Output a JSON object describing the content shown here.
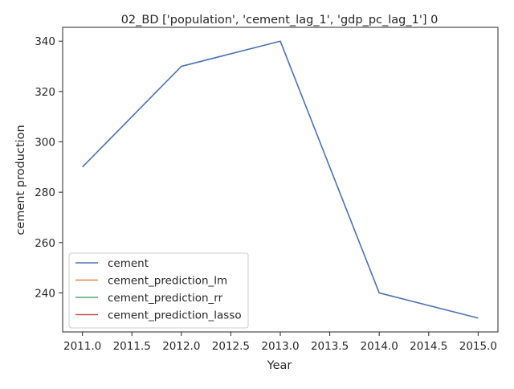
{
  "chart_data": {
    "type": "line",
    "title": "02_BD ['population', 'cement_lag_1', 'gdp_pc_lag_1'] 0",
    "xlabel": "Year",
    "ylabel": "cement production",
    "xlim": [
      2010.8,
      2015.2
    ],
    "ylim": [
      224.5,
      345.5
    ],
    "xticks": [
      2011.0,
      2011.5,
      2012.0,
      2012.5,
      2013.0,
      2013.5,
      2014.0,
      2014.5,
      2015.0
    ],
    "xtick_labels": [
      "2011.0",
      "2011.5",
      "2012.0",
      "2012.5",
      "2013.0",
      "2013.5",
      "2014.0",
      "2014.5",
      "2015.0"
    ],
    "yticks": [
      240,
      260,
      280,
      300,
      320,
      340
    ],
    "ytick_labels": [
      "240",
      "260",
      "280",
      "300",
      "320",
      "340"
    ],
    "grid": false,
    "legend_position": "lower-left",
    "series": [
      {
        "name": "cement",
        "color": "#4c72b0",
        "x": [
          2011,
          2012,
          2013,
          2014,
          2015
        ],
        "y": [
          290,
          330,
          340,
          240,
          230
        ]
      },
      {
        "name": "cement_prediction_lm",
        "color": "#dd8452",
        "x": [],
        "y": []
      },
      {
        "name": "cement_prediction_rr",
        "color": "#55a868",
        "x": [],
        "y": []
      },
      {
        "name": "cement_prediction_lasso",
        "color": "#c44e52",
        "x": [],
        "y": []
      }
    ]
  }
}
